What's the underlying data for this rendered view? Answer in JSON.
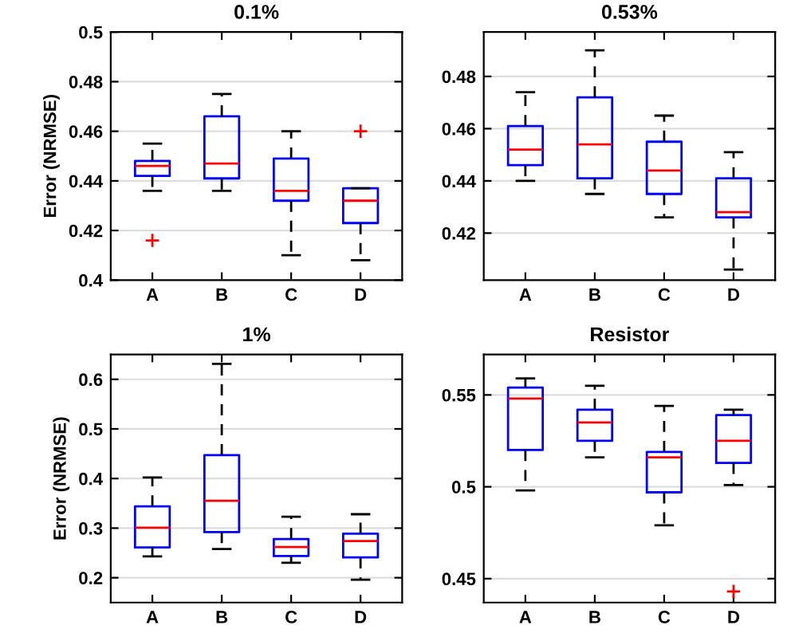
{
  "chart_data": [
    {
      "type": "box",
      "title": "0.1%",
      "ylabel": "Error (NRMSE)",
      "categories": [
        "A",
        "B",
        "C",
        "D"
      ],
      "ylim": [
        0.4,
        0.5
      ],
      "yticks": [
        0.4,
        0.42,
        0.44,
        0.46,
        0.48,
        0.5
      ],
      "grid": "y",
      "boxes": [
        {
          "low": 0.436,
          "q1": 0.442,
          "median": 0.446,
          "q3": 0.448,
          "high": 0.455,
          "outliers": [
            0.416
          ]
        },
        {
          "low": 0.436,
          "q1": 0.441,
          "median": 0.447,
          "q3": 0.466,
          "high": 0.475
        },
        {
          "low": 0.41,
          "q1": 0.432,
          "median": 0.436,
          "q3": 0.449,
          "high": 0.46
        },
        {
          "low": 0.408,
          "q1": 0.423,
          "median": 0.432,
          "q3": 0.437,
          "high": 0.437,
          "outliers": [
            0.46
          ]
        }
      ]
    },
    {
      "type": "box",
      "title": "0.53%",
      "categories": [
        "A",
        "B",
        "C",
        "D"
      ],
      "ylim": [
        0.402,
        0.497
      ],
      "yticks": [
        0.42,
        0.44,
        0.46,
        0.48
      ],
      "grid": "y",
      "boxes": [
        {
          "low": 0.44,
          "q1": 0.446,
          "median": 0.452,
          "q3": 0.461,
          "high": 0.474
        },
        {
          "low": 0.435,
          "q1": 0.441,
          "median": 0.454,
          "q3": 0.472,
          "high": 0.49
        },
        {
          "low": 0.426,
          "q1": 0.435,
          "median": 0.444,
          "q3": 0.455,
          "high": 0.465
        },
        {
          "low": 0.406,
          "q1": 0.426,
          "median": 0.428,
          "q3": 0.441,
          "high": 0.451
        }
      ]
    },
    {
      "type": "box",
      "title": "1%",
      "ylabel": "Error (NRMSE)",
      "categories": [
        "A",
        "B",
        "C",
        "D"
      ],
      "ylim": [
        0.15,
        0.65
      ],
      "yticks": [
        0.2,
        0.3,
        0.4,
        0.5,
        0.6
      ],
      "grid": "y",
      "boxes": [
        {
          "low": 0.243,
          "q1": 0.261,
          "median": 0.301,
          "q3": 0.344,
          "high": 0.402
        },
        {
          "low": 0.258,
          "q1": 0.292,
          "median": 0.355,
          "q3": 0.447,
          "high": 0.631
        },
        {
          "low": 0.23,
          "q1": 0.244,
          "median": 0.262,
          "q3": 0.278,
          "high": 0.323
        },
        {
          "low": 0.196,
          "q1": 0.241,
          "median": 0.274,
          "q3": 0.289,
          "high": 0.328
        }
      ]
    },
    {
      "type": "box",
      "title": "Resistor",
      "categories": [
        "A",
        "B",
        "C",
        "D"
      ],
      "ylim": [
        0.437,
        0.572
      ],
      "yticks": [
        0.45,
        0.5,
        0.55
      ],
      "grid": "y",
      "boxes": [
        {
          "low": 0.498,
          "q1": 0.52,
          "median": 0.548,
          "q3": 0.554,
          "high": 0.559
        },
        {
          "low": 0.516,
          "q1": 0.525,
          "median": 0.535,
          "q3": 0.542,
          "high": 0.555
        },
        {
          "low": 0.479,
          "q1": 0.497,
          "median": 0.516,
          "q3": 0.519,
          "high": 0.544
        },
        {
          "low": 0.501,
          "q1": 0.513,
          "median": 0.525,
          "q3": 0.539,
          "high": 0.542,
          "outliers": [
            0.443
          ]
        }
      ]
    }
  ]
}
